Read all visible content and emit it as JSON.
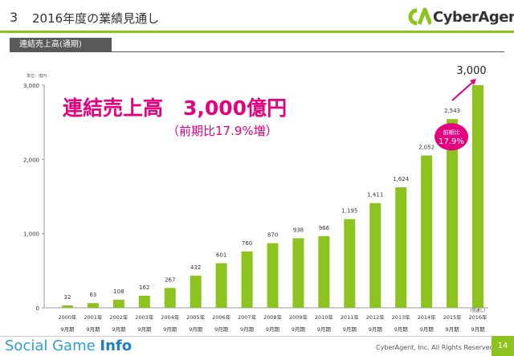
{
  "header": {
    "slide_number": "3",
    "title": "2016年度の業績見通し",
    "logo_text": "CyberAgent",
    "logo_color": "#8dc21f"
  },
  "section": {
    "tab_label": "連結売上高(通期)"
  },
  "headline": {
    "main": "連結売上高　3,000億円",
    "sub": "（前期比17.9%増）",
    "color": "#e4007f"
  },
  "chart_data": {
    "type": "bar",
    "unit_label": "単位：億円",
    "categories": [
      "2000年",
      "2001年",
      "2002年",
      "2003年",
      "2004年",
      "2005年",
      "2006年",
      "2007年",
      "2008年",
      "2009年",
      "2010年",
      "2011年",
      "2012年",
      "2013年",
      "2014年",
      "2015年",
      "2016年"
    ],
    "category_sublabel": "9月期",
    "values": [
      32,
      63,
      108,
      162,
      267,
      432,
      601,
      760,
      870,
      938,
      966,
      1195,
      1411,
      1624,
      2052,
      2543,
      3000
    ],
    "value_labels": [
      "32",
      "63",
      "108",
      "162",
      "267",
      "432",
      "601",
      "760",
      "870",
      "938",
      "966",
      "1,195",
      "1,411",
      "1,624",
      "2,052",
      "2,543",
      "3,000"
    ],
    "forecast_note": "（見通し）",
    "yticks": [
      0,
      1000,
      2000,
      3000
    ],
    "ytick_labels": [
      "0",
      "1,000",
      "2,000",
      "3,000"
    ],
    "ylim": [
      0,
      3000
    ],
    "bar_color": "#8dc21f",
    "callout": {
      "line1": "前期比",
      "line2": "17.9%",
      "color": "#e4007f"
    }
  },
  "footer": {
    "brand": "Social Game ",
    "brand_bold": "Info",
    "copyright": "CyberAgent, Inc. All Rights Reserved.",
    "page_number": "14"
  }
}
